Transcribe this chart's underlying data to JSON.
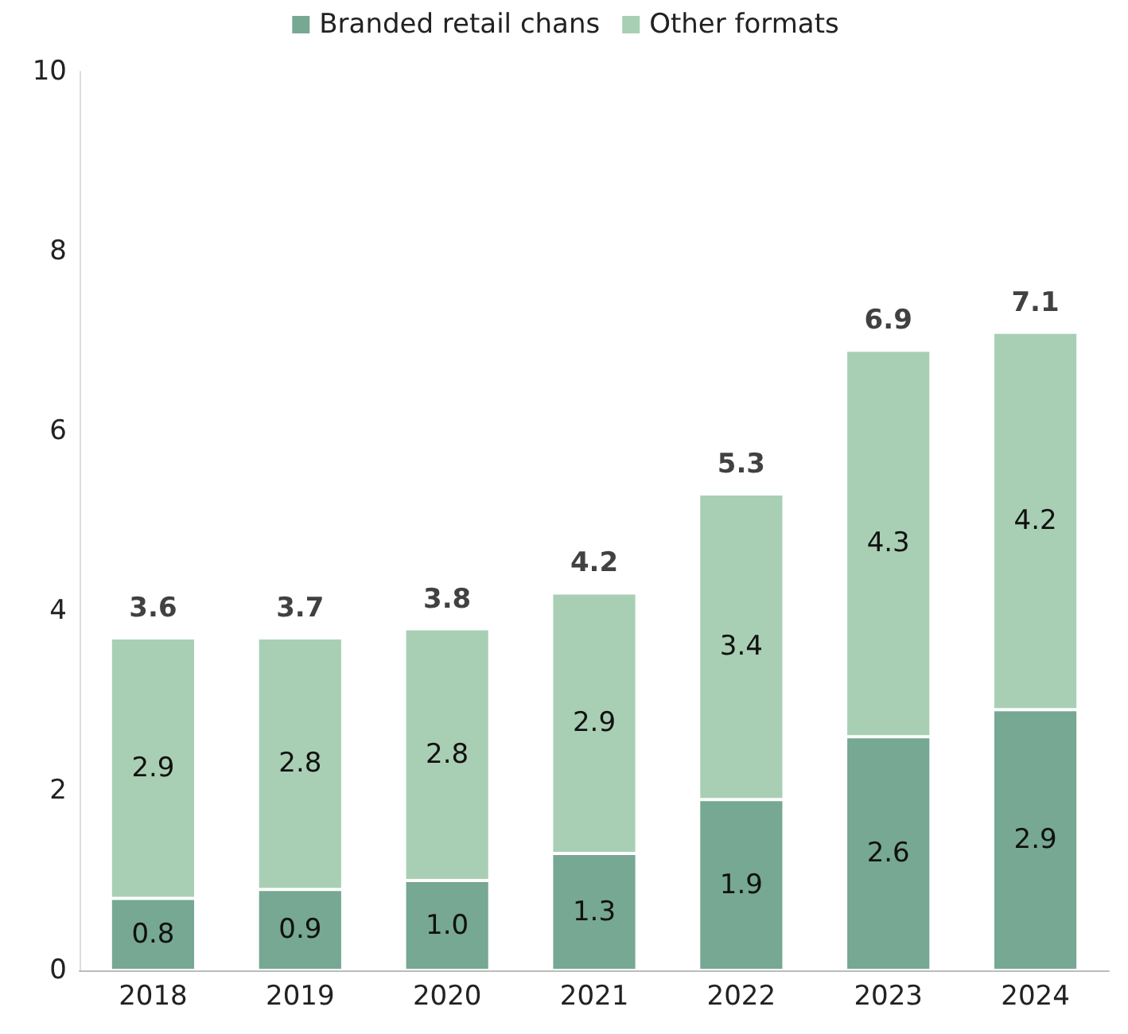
{
  "chart_data": {
    "type": "bar",
    "stacked": true,
    "categories": [
      "2018",
      "2019",
      "2020",
      "2021",
      "2022",
      "2023",
      "2024"
    ],
    "series": [
      {
        "name": "Branded retail chans",
        "color": "#76a893",
        "values": [
          0.8,
          0.9,
          1.0,
          1.3,
          1.9,
          2.6,
          2.9
        ],
        "value_labels": [
          "0.8",
          "0.9",
          "1.0",
          "1.3",
          "1.9",
          "2.6",
          "2.9"
        ]
      },
      {
        "name": "Other formats",
        "color": "#a8cfb4",
        "values": [
          2.9,
          2.8,
          2.8,
          2.9,
          3.4,
          4.3,
          4.2
        ],
        "value_labels": [
          "2.9",
          "2.8",
          "2.8",
          "2.9",
          "3.4",
          "4.3",
          "4.2"
        ]
      }
    ],
    "totals": [
      "3.6",
      "3.7",
      "3.8",
      "4.2",
      "5.3",
      "6.9",
      "7.1"
    ],
    "ylim": [
      0,
      10
    ],
    "yticks": [
      0,
      2,
      4,
      6,
      8,
      10
    ],
    "grid": false,
    "legend": "top"
  }
}
